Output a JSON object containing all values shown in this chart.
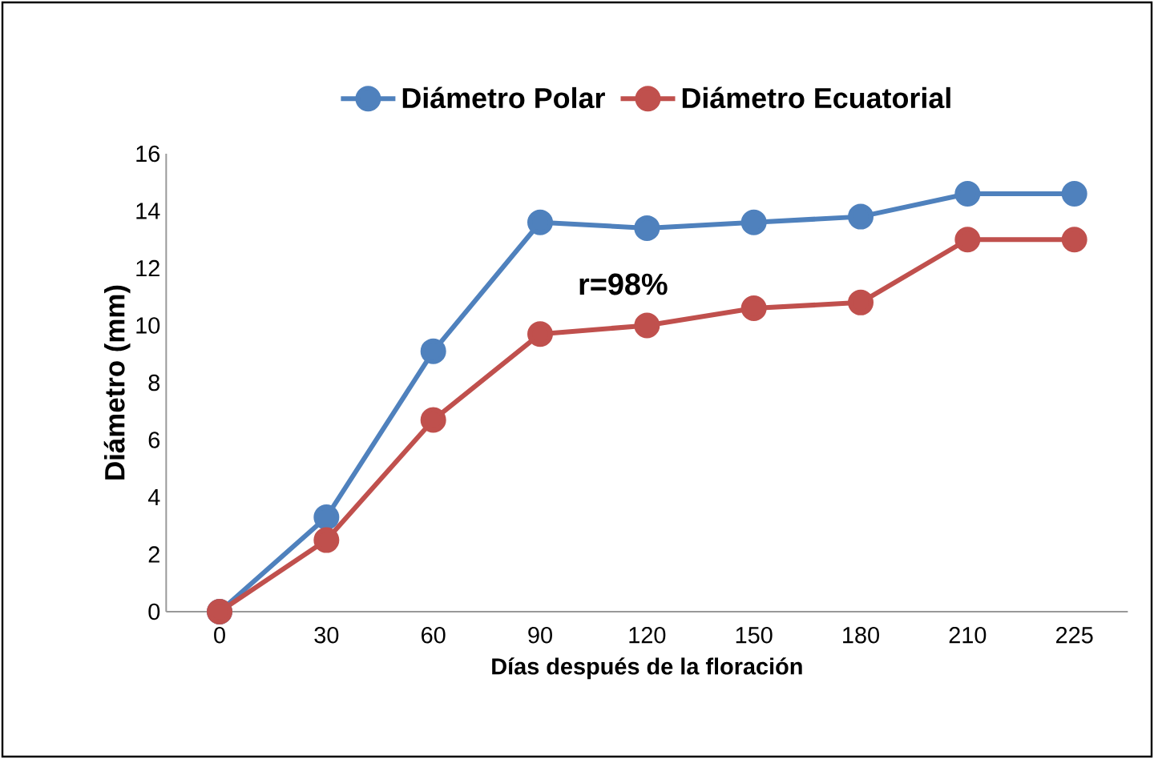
{
  "chart_data": {
    "type": "line",
    "categories": [
      "0",
      "30",
      "60",
      "90",
      "120",
      "150",
      "180",
      "210",
      "225"
    ],
    "series": [
      {
        "name": "Diámetro Polar",
        "color": "#4f81bd",
        "values": [
          0,
          3.3,
          9.1,
          13.6,
          13.4,
          13.6,
          13.8,
          14.6,
          14.6
        ]
      },
      {
        "name": "Diámetro Ecuatorial",
        "color": "#c0504d",
        "values": [
          0,
          2.5,
          6.7,
          9.7,
          10.0,
          10.6,
          10.8,
          13.0,
          13.0
        ]
      }
    ],
    "xlabel": "Días después de la floración",
    "ylabel": "Diámetro (mm)",
    "ylim": [
      0,
      16
    ],
    "yticks": [
      0,
      2,
      4,
      6,
      8,
      10,
      12,
      14,
      16
    ],
    "annotations": [
      "r=98%"
    ],
    "legend": "top",
    "marker": "circle",
    "grid": false
  }
}
